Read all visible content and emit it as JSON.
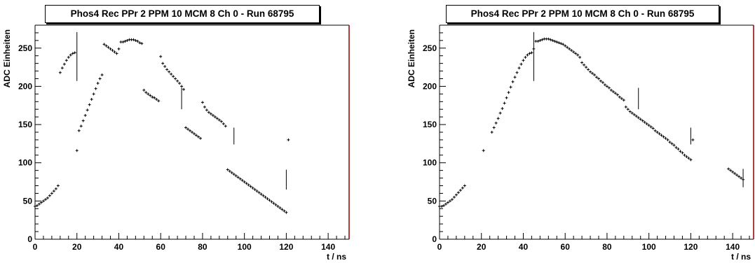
{
  "charts": [
    {
      "title": "Phos4 Rec PPr 2 PPM 10 MCM 8 Ch 0 - Run 68795",
      "xlabel": "t / ns",
      "ylabel": "ADC Einheiten"
    },
    {
      "title": "Phos4 Rec PPr 2 PPM 10 MCM 8 Ch 0 - Run 68795",
      "xlabel": "t / ns",
      "ylabel": "ADC Einheiten"
    }
  ],
  "colors": {
    "frame": "#000000",
    "frame_right_edge": "#8b0000",
    "markers": "#000000"
  },
  "chart_data": [
    {
      "type": "scatter",
      "title": "Phos4 Rec PPr 2 PPM 10 MCM 8 Ch 0 - Run 68795",
      "xlabel": "t / ns",
      "ylabel": "ADC Einheiten",
      "xlim": [
        0,
        150
      ],
      "ylim": [
        0,
        280
      ],
      "x_ticks": [
        0,
        20,
        40,
        60,
        80,
        100,
        120,
        140
      ],
      "y_ticks": [
        0,
        50,
        100,
        150,
        200,
        250
      ],
      "grid": false,
      "series": [
        {
          "x": [
            0,
            1,
            2,
            3,
            4,
            5,
            6,
            7,
            8,
            9,
            10,
            11,
            12,
            13,
            14,
            15,
            16,
            17,
            18,
            19,
            20,
            21,
            22,
            23,
            24,
            25,
            26,
            27,
            28,
            29,
            30,
            31,
            32,
            33,
            34,
            35,
            36,
            37,
            38,
            39,
            40,
            41,
            42,
            43,
            44,
            45,
            46,
            47,
            48,
            49,
            50,
            51,
            52,
            53,
            54,
            55,
            56,
            57,
            58,
            59,
            60,
            61,
            62,
            63,
            64,
            65,
            66,
            67,
            68,
            69,
            70,
            71,
            72,
            73,
            74,
            75,
            76,
            77,
            78,
            79,
            80,
            81,
            82,
            83,
            84,
            85,
            86,
            87,
            88,
            89,
            90,
            91,
            92,
            93,
            94,
            95,
            96,
            97,
            98,
            99,
            100,
            101,
            102,
            103,
            104,
            105,
            106,
            107,
            108,
            109,
            110,
            111,
            112,
            113,
            114,
            115,
            116,
            117,
            118,
            119,
            120,
            121
          ],
          "y": [
            43,
            44,
            46,
            48,
            50,
            52,
            54,
            57,
            60,
            63,
            66,
            70,
            218,
            224,
            229,
            234,
            238,
            241,
            243,
            244,
            116,
            142,
            148,
            155,
            162,
            169,
            176,
            183,
            190,
            197,
            204,
            210,
            215,
            255,
            253,
            251,
            249,
            247,
            245,
            243,
            249,
            258,
            258,
            259,
            260,
            261,
            261,
            261,
            260,
            259,
            257,
            256,
            195,
            192,
            190,
            188,
            186,
            185,
            183,
            181,
            239,
            230,
            226,
            222,
            219,
            216,
            213,
            210,
            207,
            204,
            200,
            196,
            146,
            144,
            142,
            140,
            138,
            136,
            134,
            132,
            179,
            173,
            169,
            166,
            164,
            162,
            160,
            158,
            156,
            154,
            151,
            148,
            91,
            89,
            87,
            85,
            83,
            81,
            79,
            77,
            75,
            73,
            71,
            69,
            67,
            65,
            63,
            61,
            59,
            57,
            55,
            53,
            51,
            49,
            47,
            45,
            43,
            41,
            39,
            37,
            35,
            130
          ],
          "error_bars": [
            {
              "x": 20,
              "y": 239,
              "err": 32
            },
            {
              "x": 70,
              "y": 184,
              "err": 14
            },
            {
              "x": 95,
              "y": 135,
              "err": 11
            },
            {
              "x": 120,
              "y": 78,
              "err": 13
            }
          ]
        }
      ]
    },
    {
      "type": "scatter",
      "title": "Phos4 Rec PPr 2 PPM 10 MCM 8 Ch 0 - Run 68795",
      "xlabel": "t / ns",
      "ylabel": "ADC Einheiten",
      "xlim": [
        0,
        150
      ],
      "ylim": [
        0,
        280
      ],
      "x_ticks": [
        0,
        20,
        40,
        60,
        80,
        100,
        120,
        140
      ],
      "y_ticks": [
        0,
        50,
        100,
        150,
        200,
        250
      ],
      "grid": false,
      "series": [
        {
          "x": [
            0,
            1,
            2,
            3,
            4,
            5,
            6,
            7,
            8,
            9,
            10,
            11,
            12,
            21,
            25,
            26,
            27,
            28,
            29,
            30,
            31,
            32,
            33,
            34,
            35,
            36,
            37,
            38,
            39,
            40,
            41,
            42,
            43,
            44,
            45,
            46,
            47,
            48,
            49,
            50,
            51,
            52,
            53,
            54,
            55,
            56,
            57,
            58,
            59,
            60,
            61,
            62,
            63,
            64,
            65,
            66,
            67,
            68,
            69,
            70,
            71,
            72,
            73,
            74,
            75,
            76,
            77,
            78,
            79,
            80,
            81,
            82,
            83,
            84,
            85,
            86,
            87,
            88,
            89,
            90,
            91,
            92,
            93,
            94,
            95,
            96,
            97,
            98,
            99,
            100,
            101,
            102,
            103,
            104,
            105,
            106,
            107,
            108,
            109,
            110,
            111,
            112,
            113,
            114,
            115,
            116,
            117,
            118,
            119,
            120,
            121,
            138,
            139,
            140,
            141,
            142,
            143,
            144,
            145
          ],
          "y": [
            43,
            43,
            44,
            46,
            48,
            50,
            52,
            55,
            58,
            61,
            64,
            67,
            70,
            116,
            140,
            146,
            152,
            158,
            165,
            171,
            178,
            185,
            192,
            199,
            206,
            212,
            218,
            224,
            229,
            234,
            238,
            241,
            243,
            244,
            249,
            259,
            259,
            260,
            261,
            262,
            262,
            262,
            261,
            260,
            259,
            258,
            257,
            256,
            255,
            253,
            251,
            249,
            247,
            245,
            243,
            241,
            238,
            231,
            228,
            225,
            222,
            219,
            217,
            215,
            212,
            210,
            207,
            205,
            202,
            200,
            198,
            195,
            193,
            191,
            189,
            186,
            184,
            182,
            173,
            170,
            167,
            165,
            163,
            161,
            159,
            157,
            155,
            153,
            151,
            149,
            147,
            145,
            142,
            140,
            138,
            136,
            134,
            132,
            130,
            127,
            125,
            123,
            120,
            118,
            115,
            113,
            110,
            108,
            106,
            104,
            130,
            92,
            90,
            88,
            86,
            84,
            82,
            80,
            78
          ],
          "error_bars": [
            {
              "x": 45,
              "y": 239,
              "err": 32
            },
            {
              "x": 95,
              "y": 184,
              "err": 14
            },
            {
              "x": 120,
              "y": 135,
              "err": 11
            },
            {
              "x": 145,
              "y": 80,
              "err": 12
            }
          ]
        }
      ]
    }
  ]
}
